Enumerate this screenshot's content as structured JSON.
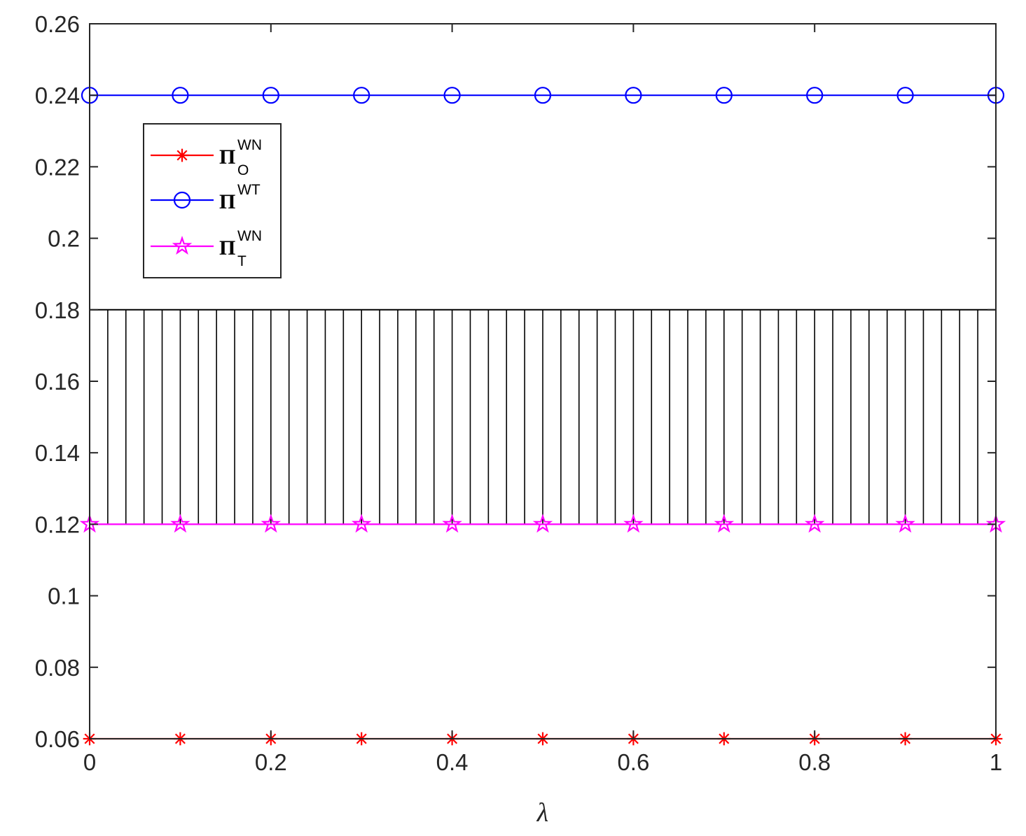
{
  "chart_data": {
    "type": "line",
    "title": "",
    "xlabel": "λ",
    "ylabel": "",
    "xlim": [
      0,
      1
    ],
    "ylim": [
      0.06,
      0.26
    ],
    "x_ticks": [
      "0",
      "0.2",
      "0.4",
      "0.6",
      "0.8",
      "1"
    ],
    "y_ticks": [
      "0.06",
      "0.08",
      "0.1",
      "0.12",
      "0.14",
      "0.16",
      "0.18",
      "0.2",
      "0.22",
      "0.24",
      "0.26"
    ],
    "grid": false,
    "legend_position": "upper-left",
    "x": [
      0,
      0.1,
      0.2,
      0.3,
      0.4,
      0.5,
      0.6,
      0.7,
      0.8,
      0.9,
      1.0
    ],
    "series": [
      {
        "symbol": "Π",
        "superscript": "WN",
        "subscript": "O",
        "color": "#ff0000",
        "marker": "asterisk",
        "values": [
          0.06,
          0.06,
          0.06,
          0.06,
          0.06,
          0.06,
          0.06,
          0.06,
          0.06,
          0.06,
          0.06
        ]
      },
      {
        "symbol": "Π",
        "superscript": "WT",
        "subscript": "",
        "color": "#0000ff",
        "marker": "circle",
        "values": [
          0.24,
          0.24,
          0.24,
          0.24,
          0.24,
          0.24,
          0.24,
          0.24,
          0.24,
          0.24,
          0.24
        ]
      },
      {
        "symbol": "Π",
        "superscript": "WN",
        "subscript": "T",
        "color": "#ff00ff",
        "marker": "pentagram",
        "values": [
          0.12,
          0.12,
          0.12,
          0.12,
          0.12,
          0.12,
          0.12,
          0.12,
          0.12,
          0.12,
          0.12
        ]
      }
    ],
    "shaded_region": {
      "y_lower": 0.12,
      "y_upper": 0.18,
      "pattern": "vertical-hatch",
      "color": "#000000"
    }
  }
}
